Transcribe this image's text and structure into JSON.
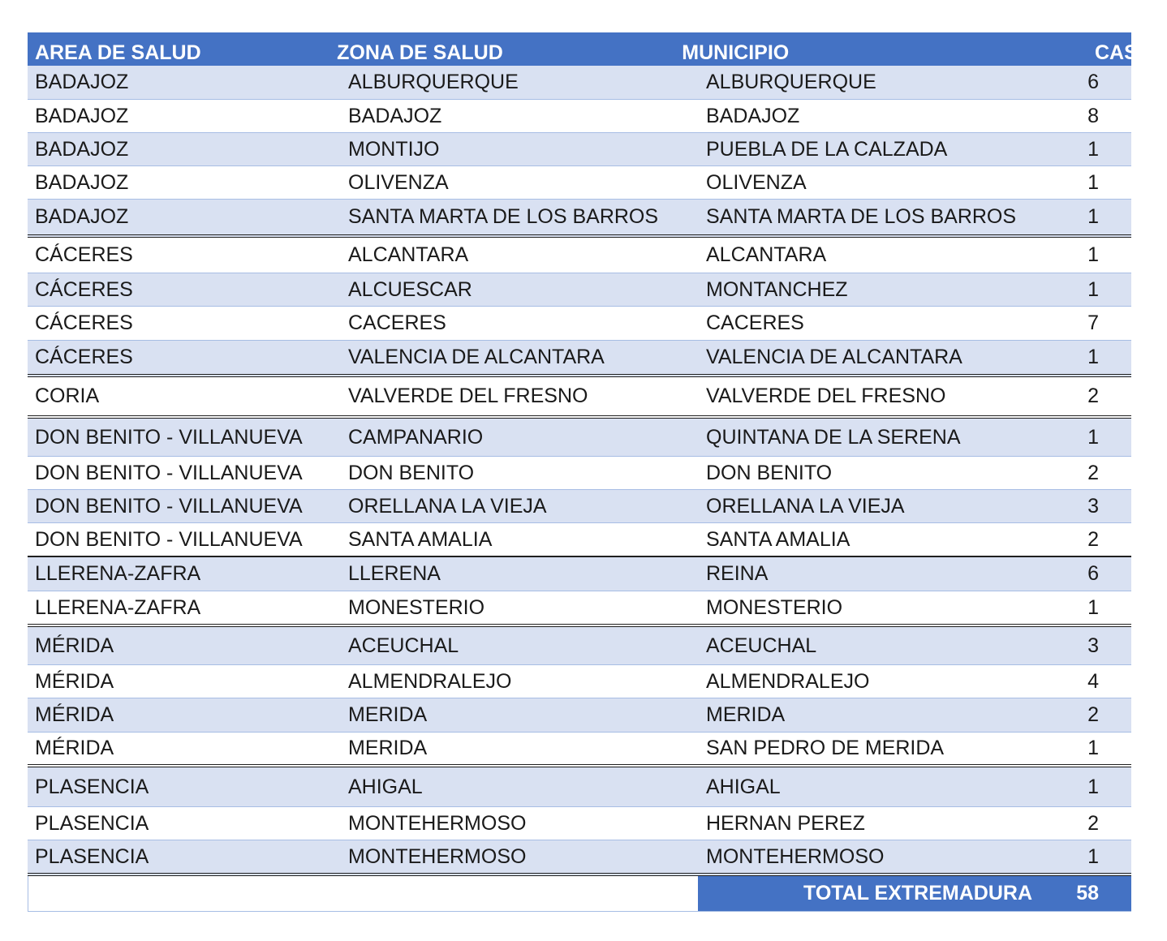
{
  "table": {
    "headers": [
      "AREA DE SALUD",
      "ZONA DE SALUD",
      "MUNICIPIO",
      "CASOS +"
    ],
    "rows": [
      [
        "BADAJOZ",
        "ALBURQUERQUE",
        "ALBURQUERQUE",
        "6"
      ],
      [
        "BADAJOZ",
        "BADAJOZ",
        "BADAJOZ",
        "8"
      ],
      [
        "BADAJOZ",
        "MONTIJO",
        "PUEBLA DE LA CALZADA",
        "1"
      ],
      [
        "BADAJOZ",
        "OLIVENZA",
        "OLIVENZA",
        "1"
      ],
      [
        "BADAJOZ",
        "SANTA MARTA DE LOS BARROS",
        "SANTA MARTA DE LOS BARROS",
        "1"
      ],
      [
        "CÁCERES",
        "ALCANTARA",
        "ALCANTARA",
        "1"
      ],
      [
        "CÁCERES",
        "ALCUESCAR",
        "MONTANCHEZ",
        "1"
      ],
      [
        "CÁCERES",
        "CACERES",
        "CACERES",
        "7"
      ],
      [
        "CÁCERES",
        "VALENCIA DE ALCANTARA",
        "VALENCIA DE ALCANTARA",
        "1"
      ],
      [
        "CORIA",
        "VALVERDE DEL FRESNO",
        "VALVERDE DEL FRESNO",
        "2"
      ],
      [
        "DON BENITO - VILLANUEVA",
        "CAMPANARIO",
        "QUINTANA DE LA SERENA",
        "1"
      ],
      [
        "DON BENITO - VILLANUEVA",
        "DON BENITO",
        "DON BENITO",
        "2"
      ],
      [
        "DON BENITO - VILLANUEVA",
        "ORELLANA LA VIEJA",
        "ORELLANA LA VIEJA",
        "3"
      ],
      [
        "DON BENITO - VILLANUEVA",
        "SANTA AMALIA",
        "SANTA AMALIA",
        "2"
      ],
      [
        "LLERENA-ZAFRA",
        "LLERENA",
        "REINA",
        "6"
      ],
      [
        "LLERENA-ZAFRA",
        "MONESTERIO",
        "MONESTERIO",
        "1"
      ],
      [
        "MÉRIDA",
        "ACEUCHAL",
        "ACEUCHAL",
        "3"
      ],
      [
        "MÉRIDA",
        "ALMENDRALEJO",
        "ALMENDRALEJO",
        "4"
      ],
      [
        "MÉRIDA",
        "MERIDA",
        "MERIDA",
        "2"
      ],
      [
        "MÉRIDA",
        "MERIDA",
        "SAN PEDRO DE MERIDA",
        "1"
      ],
      [
        "PLASENCIA",
        "AHIGAL",
        "AHIGAL",
        "1"
      ],
      [
        "PLASENCIA",
        "MONTEHERMOSO",
        "HERNAN PEREZ",
        "2"
      ],
      [
        "PLASENCIA",
        "MONTEHERMOSO",
        "MONTEHERMOSO",
        "1"
      ]
    ],
    "total_label": "TOTAL EXTREMADURA",
    "total_value": "58"
  },
  "colors": {
    "header_fill": "#4472c4",
    "band_fill": "#d9e1f2",
    "text": "#1a1a1a"
  }
}
